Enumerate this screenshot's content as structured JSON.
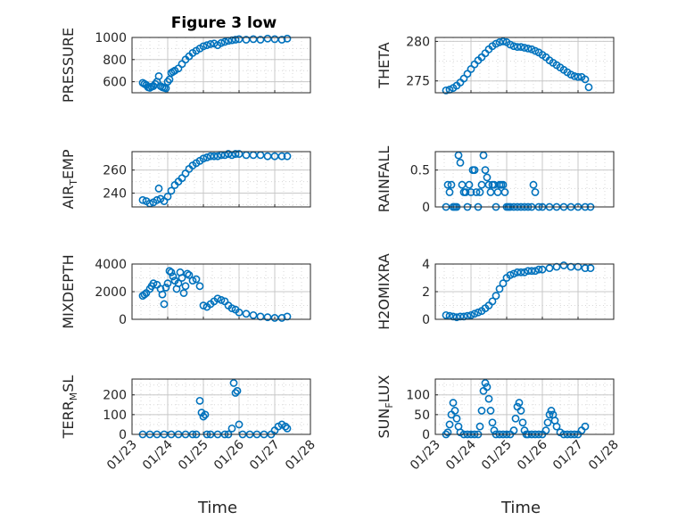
{
  "figure": {
    "title": "Figure 3 low",
    "marker_color": "#0072BD"
  },
  "x_ticks": [
    "01/23",
    "01/24",
    "01/25",
    "01/26",
    "01/27",
    "01/28"
  ],
  "x_label": "Time",
  "chart_data": [
    {
      "type": "scatter",
      "ylabel": "PRESSURE",
      "ylim": [
        500,
        1000
      ],
      "yticks": [
        "600",
        "800",
        "1000"
      ],
      "grid": true,
      "x": [
        23.3,
        23.35,
        23.4,
        23.45,
        23.5,
        23.55,
        23.6,
        23.65,
        23.7,
        23.75,
        23.8,
        23.85,
        23.9,
        23.95,
        24.0,
        24.05,
        24.1,
        24.15,
        24.2,
        24.3,
        24.4,
        24.5,
        24.6,
        24.7,
        24.8,
        24.9,
        25.0,
        25.1,
        25.2,
        25.3,
        25.4,
        25.5,
        25.6,
        25.7,
        25.8,
        25.9,
        26.0,
        26.2,
        26.4,
        26.6,
        26.8,
        27.0,
        27.2,
        27.35
      ],
      "y": [
        590,
        580,
        570,
        550,
        545,
        555,
        560,
        580,
        600,
        650,
        560,
        550,
        545,
        540,
        600,
        620,
        680,
        690,
        700,
        720,
        760,
        800,
        830,
        860,
        880,
        900,
        920,
        930,
        940,
        945,
        930,
        950,
        960,
        970,
        975,
        980,
        985,
        980,
        985,
        980,
        990,
        985,
        980,
        990
      ]
    },
    {
      "type": "scatter",
      "ylabel": "THETA",
      "ylim": [
        273.5,
        280.5
      ],
      "yticks": [
        "275",
        "280"
      ],
      "grid": true,
      "x": [
        23.3,
        23.4,
        23.5,
        23.6,
        23.7,
        23.8,
        23.9,
        24.0,
        24.1,
        24.2,
        24.3,
        24.4,
        24.5,
        24.6,
        24.7,
        24.8,
        24.9,
        25.0,
        25.1,
        25.2,
        25.3,
        25.4,
        25.5,
        25.6,
        25.7,
        25.8,
        25.9,
        26.0,
        26.1,
        26.2,
        26.3,
        26.4,
        26.5,
        26.6,
        26.7,
        26.8,
        26.9,
        27.0,
        27.1,
        27.2,
        27.3
      ],
      "y": [
        273.8,
        273.9,
        274.1,
        274.4,
        274.8,
        275.3,
        275.9,
        276.5,
        277.1,
        277.6,
        278.0,
        278.5,
        279.0,
        279.4,
        279.7,
        279.9,
        280.0,
        279.9,
        279.6,
        279.4,
        279.3,
        279.3,
        279.2,
        279.1,
        279.0,
        278.8,
        278.6,
        278.3,
        278.0,
        277.6,
        277.3,
        277.0,
        276.7,
        276.4,
        276.1,
        275.8,
        275.6,
        275.5,
        275.5,
        275.2,
        274.2
      ]
    },
    {
      "type": "scatter",
      "ylabel": "AIR_TEMP",
      "ylim": [
        228,
        276
      ],
      "yticks": [
        "240",
        "260"
      ],
      "grid": true,
      "x": [
        23.3,
        23.4,
        23.5,
        23.6,
        23.7,
        23.75,
        23.8,
        23.9,
        24.0,
        24.1,
        24.2,
        24.3,
        24.4,
        24.5,
        24.6,
        24.7,
        24.8,
        24.9,
        25.0,
        25.1,
        25.2,
        25.3,
        25.4,
        25.5,
        25.6,
        25.7,
        25.8,
        25.9,
        26.0,
        26.2,
        26.4,
        26.6,
        26.8,
        27.0,
        27.2,
        27.35
      ],
      "y": [
        234,
        233,
        231,
        232,
        234,
        244,
        235,
        233,
        237,
        242,
        247,
        250,
        253,
        257,
        261,
        264,
        266,
        268,
        270,
        271,
        272,
        272,
        272,
        273,
        273,
        274,
        273,
        274,
        274,
        273,
        273,
        273,
        272,
        272,
        272,
        272
      ]
    },
    {
      "type": "scatter",
      "ylabel": "RAINFALL",
      "ylim": [
        0,
        0.75
      ],
      "yticks": [
        "0",
        "0.5"
      ],
      "grid": true,
      "x": [
        23.3,
        23.35,
        23.4,
        23.45,
        23.5,
        23.55,
        23.6,
        23.65,
        23.7,
        23.75,
        23.8,
        23.85,
        23.9,
        23.95,
        24.0,
        24.05,
        24.1,
        24.15,
        24.2,
        24.25,
        24.3,
        24.35,
        24.4,
        24.45,
        24.5,
        24.55,
        24.6,
        24.65,
        24.7,
        24.75,
        24.8,
        24.85,
        24.9,
        24.95,
        25.0,
        25.05,
        25.1,
        25.2,
        25.3,
        25.4,
        25.5,
        25.6,
        25.7,
        25.75,
        25.8,
        25.9,
        26.0,
        26.2,
        26.4,
        26.6,
        26.8,
        27.0,
        27.2,
        27.35
      ],
      "y": [
        0,
        0.3,
        0.2,
        0.3,
        0,
        0,
        0,
        0.7,
        0.6,
        0.3,
        0.2,
        0.2,
        0,
        0.3,
        0.2,
        0.5,
        0.5,
        0.2,
        0,
        0.2,
        0.3,
        0.7,
        0.5,
        0.4,
        0.3,
        0.2,
        0.3,
        0.3,
        0,
        0.2,
        0.3,
        0.3,
        0.3,
        0.2,
        0,
        0,
        0,
        0,
        0,
        0,
        0,
        0,
        0,
        0.3,
        0.2,
        0,
        0,
        0,
        0,
        0,
        0,
        0,
        0,
        0
      ]
    },
    {
      "type": "scatter",
      "ylabel": "MIXDEPTH",
      "ylim": [
        0,
        4000
      ],
      "yticks": [
        "0",
        "2000",
        "4000"
      ],
      "grid": true,
      "x": [
        23.3,
        23.35,
        23.4,
        23.5,
        23.55,
        23.6,
        23.7,
        23.8,
        23.85,
        23.9,
        23.95,
        24.0,
        24.05,
        24.1,
        24.15,
        24.2,
        24.25,
        24.3,
        24.35,
        24.4,
        24.45,
        24.5,
        24.55,
        24.6,
        24.7,
        24.8,
        24.9,
        25.0,
        25.1,
        25.2,
        25.3,
        25.4,
        25.5,
        25.6,
        25.7,
        25.8,
        25.9,
        26.0,
        26.2,
        26.4,
        26.6,
        26.8,
        27.0,
        27.2,
        27.35
      ],
      "y": [
        1700,
        1800,
        1900,
        2200,
        2400,
        2600,
        2500,
        2200,
        1800,
        1100,
        2300,
        2600,
        3500,
        3400,
        3100,
        2800,
        2200,
        2600,
        3400,
        3000,
        1900,
        2400,
        3300,
        3200,
        2800,
        2900,
        2400,
        1000,
        900,
        1100,
        1300,
        1500,
        1400,
        1300,
        1000,
        800,
        700,
        500,
        400,
        300,
        200,
        150,
        100,
        100,
        200
      ]
    },
    {
      "type": "scatter",
      "ylabel": "H2OMIXRA",
      "ylim": [
        0,
        4
      ],
      "yticks": [
        "0",
        "2",
        "4"
      ],
      "grid": true,
      "x": [
        23.3,
        23.4,
        23.5,
        23.6,
        23.7,
        23.8,
        23.9,
        24.0,
        24.1,
        24.2,
        24.3,
        24.4,
        24.5,
        24.6,
        24.7,
        24.8,
        24.9,
        25.0,
        25.1,
        25.2,
        25.3,
        25.4,
        25.5,
        25.6,
        25.7,
        25.8,
        25.9,
        26.0,
        26.2,
        26.4,
        26.6,
        26.8,
        27.0,
        27.2,
        27.35
      ],
      "y": [
        0.3,
        0.25,
        0.2,
        0.15,
        0.2,
        0.2,
        0.25,
        0.3,
        0.4,
        0.5,
        0.6,
        0.8,
        1.0,
        1.3,
        1.7,
        2.2,
        2.6,
        3.0,
        3.2,
        3.3,
        3.4,
        3.4,
        3.4,
        3.5,
        3.5,
        3.5,
        3.6,
        3.6,
        3.7,
        3.8,
        3.9,
        3.8,
        3.8,
        3.7,
        3.7
      ]
    },
    {
      "type": "scatter",
      "ylabel": "TERR_MSL",
      "ylim": [
        0,
        280
      ],
      "yticks": [
        "0",
        "100",
        "200"
      ],
      "grid": true,
      "x": [
        23.3,
        23.5,
        23.7,
        23.9,
        24.1,
        24.3,
        24.5,
        24.7,
        24.8,
        24.9,
        24.95,
        25.0,
        25.05,
        25.1,
        25.2,
        25.4,
        25.6,
        25.7,
        25.8,
        25.85,
        25.9,
        25.95,
        26.0,
        26.1,
        26.3,
        26.5,
        26.7,
        26.9,
        27.0,
        27.1,
        27.2,
        27.3,
        27.35
      ],
      "y": [
        0,
        0,
        0,
        0,
        0,
        0,
        0,
        0,
        0,
        170,
        110,
        90,
        100,
        0,
        0,
        0,
        0,
        0,
        30,
        260,
        210,
        220,
        50,
        0,
        0,
        0,
        0,
        0,
        20,
        40,
        50,
        40,
        30
      ]
    },
    {
      "type": "scatter",
      "ylabel": "SUN_FLUX",
      "ylim": [
        0,
        140
      ],
      "yticks": [
        "0",
        "50",
        "100"
      ],
      "grid": true,
      "x": [
        23.3,
        23.35,
        23.4,
        23.45,
        23.5,
        23.55,
        23.6,
        23.65,
        23.7,
        23.8,
        23.9,
        24.0,
        24.1,
        24.2,
        24.25,
        24.3,
        24.35,
        24.4,
        24.45,
        24.5,
        24.55,
        24.6,
        24.65,
        24.7,
        24.8,
        24.9,
        25.0,
        25.1,
        25.2,
        25.25,
        25.3,
        25.35,
        25.4,
        25.45,
        25.5,
        25.55,
        25.6,
        25.7,
        25.8,
        25.9,
        26.0,
        26.1,
        26.15,
        26.2,
        26.25,
        26.3,
        26.35,
        26.4,
        26.5,
        26.6,
        26.7,
        26.8,
        26.9,
        27.0,
        27.1,
        27.2
      ],
      "y": [
        0,
        5,
        25,
        50,
        80,
        60,
        40,
        20,
        5,
        0,
        0,
        0,
        0,
        0,
        20,
        60,
        110,
        130,
        120,
        90,
        60,
        30,
        10,
        0,
        0,
        0,
        0,
        0,
        10,
        40,
        70,
        80,
        60,
        30,
        10,
        0,
        0,
        0,
        0,
        0,
        0,
        10,
        30,
        50,
        60,
        50,
        35,
        20,
        5,
        0,
        0,
        0,
        0,
        0,
        10,
        20
      ]
    }
  ]
}
